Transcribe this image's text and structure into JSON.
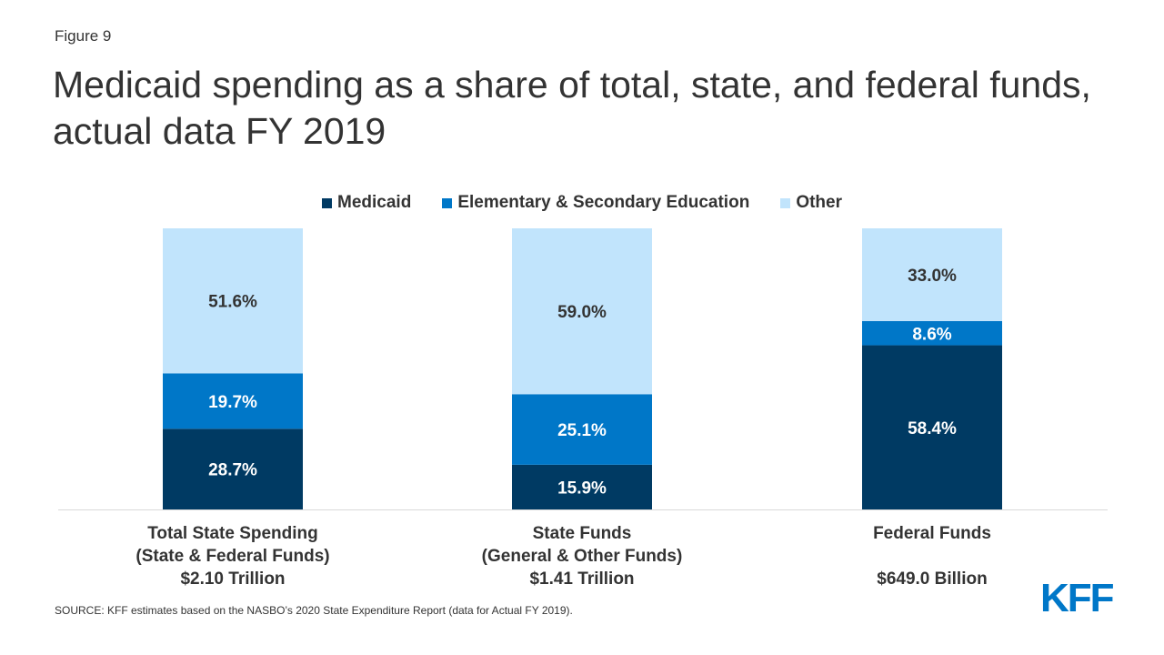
{
  "figure_label": "Figure 9",
  "source": "SOURCE: KFF estimates based on the NASBO’s 2020 State Expenditure Report (data for Actual FY 2019).",
  "logo_text": "KFF",
  "chart_data": {
    "type": "bar",
    "stacked": true,
    "title": "Medicaid spending as a share of total, state, and federal funds, actual data FY 2019",
    "legend_position": "top",
    "grid": false,
    "ylim": [
      0,
      100
    ],
    "categories": [
      [
        "Total State Spending",
        "(State & Federal Funds)",
        "$2.10 Trillion"
      ],
      [
        "State Funds",
        "(General & Other Funds)",
        "$1.41 Trillion"
      ],
      [
        "Federal Funds",
        "",
        "$649.0 Billion"
      ]
    ],
    "series": [
      {
        "name": "Medicaid",
        "color": "#003a63",
        "values": [
          28.7,
          15.9,
          58.4
        ],
        "labels": [
          "28.7%",
          "15.9%",
          "58.4%"
        ],
        "label_color": "#ffffff"
      },
      {
        "name": "Elementary & Secondary Education",
        "color": "#0077c8",
        "values": [
          19.7,
          25.1,
          8.6
        ],
        "labels": [
          "19.7%",
          "25.1%",
          "8.6%"
        ],
        "label_color": "#ffffff"
      },
      {
        "name": "Other",
        "color": "#c1e4fc",
        "values": [
          51.6,
          59.0,
          33.0
        ],
        "labels": [
          "51.6%",
          "59.0%",
          "33.0%"
        ],
        "label_color": "#333333"
      }
    ]
  }
}
